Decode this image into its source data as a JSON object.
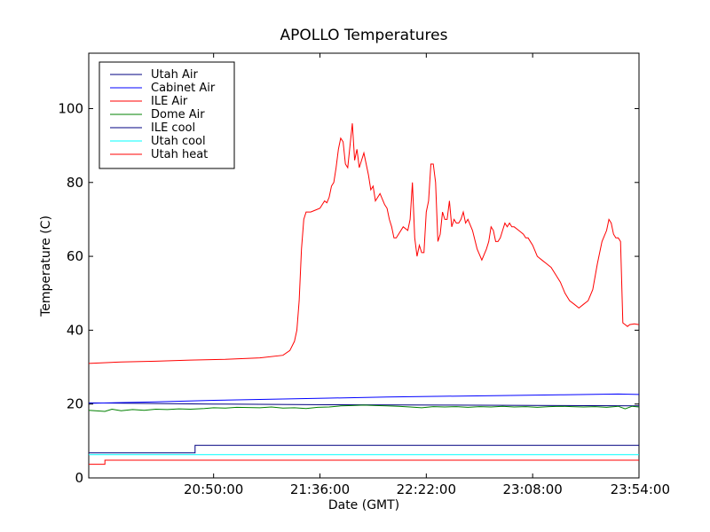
{
  "chart_data": {
    "type": "line",
    "title": "APOLLO Temperatures",
    "xlabel": "Date (GMT)",
    "ylabel": "Temperature (C)",
    "xlim_minutes": [
      1196,
      1434
    ],
    "ylim": [
      0,
      115
    ],
    "x_ticks": [
      {
        "minute": 1250,
        "label": "20:50:00"
      },
      {
        "minute": 1296,
        "label": "21:36:00"
      },
      {
        "minute": 1342,
        "label": "22:22:00"
      },
      {
        "minute": 1388,
        "label": "23:08:00"
      },
      {
        "minute": 1434,
        "label": "23:54:00"
      }
    ],
    "y_ticks": [
      0,
      20,
      40,
      60,
      80,
      100
    ],
    "legend_position": "top-left",
    "series": [
      {
        "name": "Utah Air",
        "color": "#000080",
        "x": [
          1196,
          1250,
          1300,
          1350,
          1400,
          1434
        ],
        "y": [
          20.3,
          20.0,
          19.8,
          19.7,
          19.6,
          19.5
        ]
      },
      {
        "name": "Cabinet Air",
        "color": "#0000ff",
        "x": [
          1196,
          1225,
          1250,
          1275,
          1300,
          1325,
          1350,
          1375,
          1400,
          1425,
          1434
        ],
        "y": [
          20.2,
          20.6,
          21.0,
          21.3,
          21.6,
          21.9,
          22.1,
          22.3,
          22.5,
          22.7,
          22.6
        ]
      },
      {
        "name": "ILE Air",
        "color": "#ff0000",
        "x": [
          1196,
          1210,
          1225,
          1240,
          1255,
          1270,
          1280,
          1283,
          1285,
          1286,
          1287,
          1288,
          1289,
          1290,
          1292,
          1294,
          1296,
          1298,
          1299,
          1300,
          1301,
          1302,
          1303,
          1304,
          1305,
          1306,
          1307,
          1308,
          1309,
          1310,
          1311,
          1312,
          1313,
          1315,
          1317,
          1318,
          1319,
          1320,
          1322,
          1324,
          1325,
          1326,
          1327,
          1328,
          1329,
          1330,
          1332,
          1334,
          1335,
          1336,
          1337,
          1338,
          1339,
          1340,
          1341,
          1342,
          1343,
          1344,
          1345,
          1346,
          1347,
          1348,
          1349,
          1350,
          1351,
          1352,
          1353,
          1354,
          1355,
          1356,
          1357,
          1358,
          1359,
          1360,
          1362,
          1364,
          1366,
          1368,
          1369,
          1370,
          1371,
          1372,
          1373,
          1374,
          1375,
          1376,
          1377,
          1378,
          1379,
          1380,
          1382,
          1384,
          1385,
          1386,
          1388,
          1390,
          1392,
          1394,
          1396,
          1398,
          1400,
          1402,
          1404,
          1406,
          1408,
          1410,
          1412,
          1414,
          1416,
          1418,
          1420,
          1421,
          1422,
          1423,
          1424,
          1425,
          1426,
          1427,
          1428,
          1429,
          1430,
          1432,
          1434
        ],
        "y": [
          31.0,
          31.4,
          31.6,
          31.9,
          32.1,
          32.5,
          33.2,
          34.5,
          37.0,
          40.0,
          48.0,
          62.0,
          70.0,
          72.0,
          72.0,
          72.5,
          73.0,
          75.0,
          74.5,
          76.0,
          79.0,
          80.0,
          84.0,
          89.0,
          92.0,
          91.0,
          85.0,
          84.0,
          90.0,
          96.0,
          86.0,
          89.0,
          84.0,
          88.0,
          82.0,
          78.0,
          79.0,
          75.0,
          77.0,
          74.0,
          73.0,
          70.0,
          68.0,
          65.0,
          65.0,
          66.0,
          68.0,
          67.0,
          70.0,
          80.0,
          65.0,
          60.0,
          63.0,
          61.0,
          61.0,
          72.0,
          75.0,
          85.0,
          85.0,
          80.0,
          64.0,
          66.0,
          72.0,
          70.0,
          70.0,
          75.0,
          68.0,
          70.0,
          69.0,
          69.0,
          70.0,
          72.0,
          69.0,
          70.0,
          67.0,
          62.0,
          59.0,
          62.0,
          64.0,
          68.0,
          67.0,
          64.0,
          64.0,
          65.0,
          67.0,
          69.0,
          68.0,
          69.0,
          68.0,
          68.0,
          67.0,
          66.0,
          65.0,
          65.0,
          63.0,
          60.0,
          59.0,
          58.0,
          57.0,
          55.0,
          53.0,
          50.0,
          48.0,
          47.0,
          46.0,
          47.0,
          48.0,
          51.0,
          58.0,
          64.0,
          67.0,
          70.0,
          69.0,
          66.0,
          65.0,
          65.0,
          64.0,
          42.0,
          41.5,
          41.0,
          41.5,
          41.7,
          41.5
        ]
      },
      {
        "name": "Dome Air",
        "color": "#008000",
        "x": [
          1196,
          1203,
          1206,
          1210,
          1215,
          1220,
          1225,
          1230,
          1235,
          1240,
          1246,
          1250,
          1255,
          1260,
          1270,
          1275,
          1280,
          1285,
          1290,
          1295,
          1300,
          1305,
          1310,
          1315,
          1320,
          1325,
          1330,
          1335,
          1340,
          1345,
          1350,
          1355,
          1360,
          1365,
          1370,
          1375,
          1380,
          1385,
          1390,
          1395,
          1400,
          1405,
          1410,
          1415,
          1420,
          1425,
          1428,
          1431,
          1434
        ],
        "y": [
          18.3,
          18.0,
          18.6,
          18.2,
          18.5,
          18.3,
          18.6,
          18.5,
          18.7,
          18.6,
          18.8,
          19.0,
          18.9,
          19.1,
          19.0,
          19.2,
          18.9,
          19.0,
          18.8,
          19.1,
          19.2,
          19.5,
          19.6,
          19.7,
          19.6,
          19.5,
          19.4,
          19.2,
          19.0,
          19.3,
          19.2,
          19.3,
          19.1,
          19.3,
          19.2,
          19.4,
          19.2,
          19.3,
          19.1,
          19.3,
          19.4,
          19.3,
          19.2,
          19.3,
          19.1,
          19.4,
          18.7,
          19.4,
          19.2
        ]
      },
      {
        "name": "ILE cool",
        "color": "#000080",
        "x": [
          1196,
          1242,
          1242,
          1434
        ],
        "y": [
          6.8,
          6.8,
          8.8,
          8.8
        ]
      },
      {
        "name": "Utah cool",
        "color": "#00ffff",
        "x": [
          1196,
          1434
        ],
        "y": [
          6.3,
          6.3
        ]
      },
      {
        "name": "Utah heat",
        "color": "#ff0000",
        "x": [
          1196,
          1203,
          1203,
          1434
        ],
        "y": [
          3.7,
          3.7,
          4.8,
          4.8
        ]
      }
    ]
  }
}
